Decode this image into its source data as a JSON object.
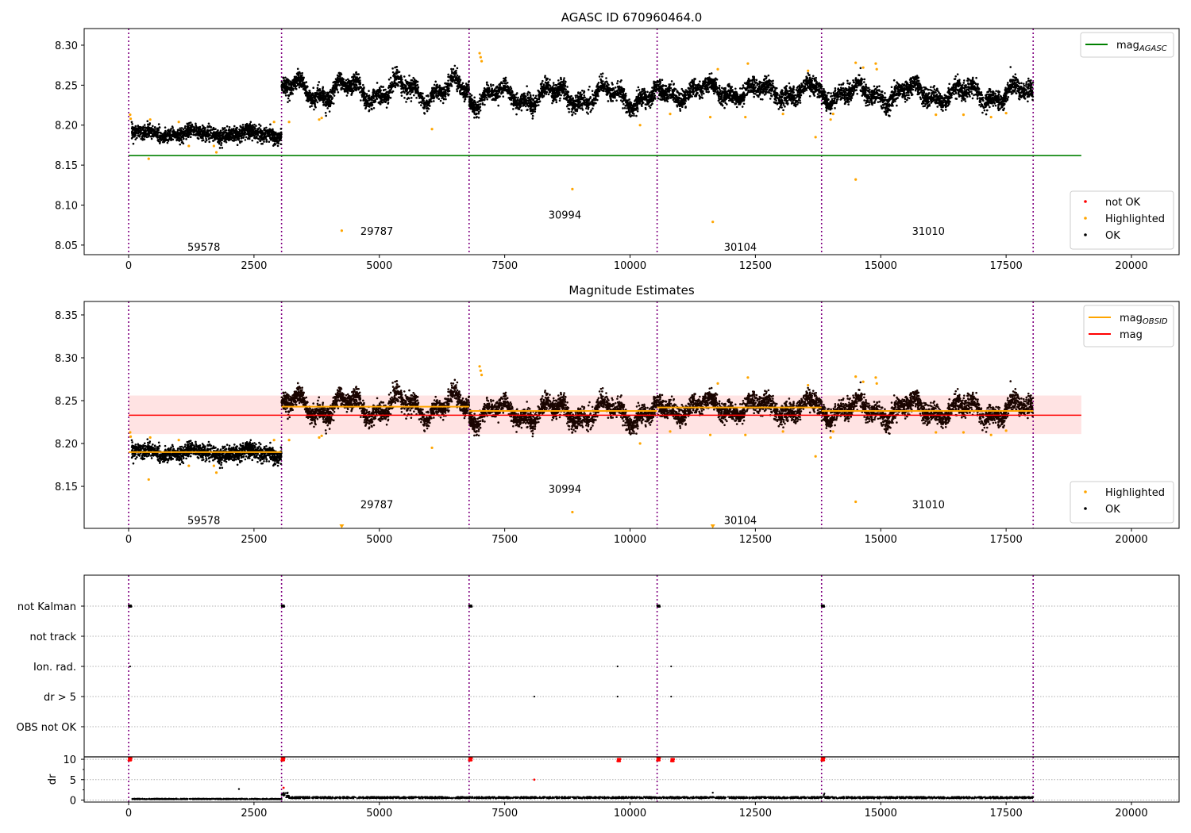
{
  "chart_data": [
    {
      "type": "scatter",
      "title": "AGASC ID 670960464.0",
      "xlim": [
        -887,
        20950
      ],
      "ylim": [
        8.038,
        8.3208
      ],
      "xticks": [
        0,
        2500,
        5000,
        7500,
        10000,
        12500,
        15000,
        17500,
        20000
      ],
      "yticks": [
        8.05,
        8.1,
        8.15,
        8.2,
        8.25,
        8.3
      ],
      "ytick_format": 2,
      "obsid_boundaries": [
        0,
        3050,
        6790,
        10540,
        13820,
        18040
      ],
      "obsid_labels": [
        {
          "text": "59578",
          "x": 1500,
          "y": 8.048
        },
        {
          "text": "29787",
          "x": 4950,
          "y": 8.068
        },
        {
          "text": "30994",
          "x": 8700,
          "y": 8.088
        },
        {
          "text": "30104",
          "x": 12200,
          "y": 8.048
        },
        {
          "text": "31010",
          "x": 15950,
          "y": 8.068
        }
      ],
      "hlines": [
        {
          "name": "mag_AGASC",
          "y": 8.162,
          "x": [
            0,
            19000
          ],
          "color": "#008000"
        }
      ],
      "legend_lines": {
        "placement": "upper right",
        "entries": [
          {
            "label": "mag",
            "sub": "AGASC",
            "color": "#008000"
          }
        ]
      },
      "legend_points": {
        "placement": "lower right",
        "entries": [
          {
            "label": "not OK",
            "color": "#ff0000"
          },
          {
            "label": "Highlighted",
            "color": "#ffa500"
          },
          {
            "label": "OK",
            "color": "#000000"
          }
        ]
      }
    },
    {
      "type": "scatter",
      "title": "Magnitude Estimates",
      "xlim": [
        -887,
        20950
      ],
      "ylim": [
        8.101,
        8.3657
      ],
      "xticks": [
        0,
        2500,
        5000,
        7500,
        10000,
        12500,
        15000,
        17500,
        20000
      ],
      "yticks": [
        8.15,
        8.2,
        8.25,
        8.3,
        8.35
      ],
      "ytick_format": 2,
      "obsid_boundaries": [
        0,
        3050,
        6790,
        10540,
        13820,
        18040
      ],
      "obsid_labels": [
        {
          "text": "59578",
          "x": 1500,
          "y": 8.1105
        },
        {
          "text": "29787",
          "x": 4950,
          "y": 8.129
        },
        {
          "text": "30994",
          "x": 8700,
          "y": 8.1475
        },
        {
          "text": "30104",
          "x": 12200,
          "y": 8.1105
        },
        {
          "text": "31010",
          "x": 15950,
          "y": 8.129
        }
      ],
      "mag": {
        "value": 8.233,
        "band": [
          8.211,
          8.256
        ],
        "x": [
          0,
          19000
        ],
        "color": "#ff0000"
      },
      "mag_obsid": [
        {
          "x": [
            0,
            3050
          ],
          "y": 8.19
        },
        {
          "x": [
            3050,
            6790
          ],
          "y": 8.243
        },
        {
          "x": [
            6790,
            10540
          ],
          "y": 8.238
        },
        {
          "x": [
            10540,
            13820
          ],
          "y": 8.242
        },
        {
          "x": [
            13820,
            18040
          ],
          "y": 8.238
        }
      ],
      "legend_lines": {
        "placement": "upper right",
        "entries": [
          {
            "label": "mag",
            "sub": "OBSID",
            "color": "#ffa500"
          },
          {
            "label": "mag",
            "sub": "",
            "color": "#ff0000"
          }
        ]
      },
      "legend_points": {
        "placement": "lower right",
        "entries": [
          {
            "label": "Highlighted",
            "color": "#ffa500"
          },
          {
            "label": "OK",
            "color": "#000000"
          }
        ]
      }
    },
    {
      "type": "scatter",
      "title": "",
      "categories": [
        "not Kalman",
        "not track",
        "Ion. rad.",
        "dr > 5",
        "OBS not OK"
      ],
      "flags": {
        "not Kalman": [
          0,
          3050,
          6790,
          10540,
          13820
        ],
        "not track": [],
        "Ion. rad.": [
          30,
          9750,
          10820
        ],
        "dr > 5": [
          8090,
          9750,
          10820
        ],
        "OBS not OK": []
      },
      "dr_axis": {
        "ylabel": "dr",
        "yticks": [
          0,
          5,
          10
        ],
        "ylim": [
          -0.5,
          10.6
        ],
        "threshold": 10.6
      },
      "dr_red_points": [
        [
          0,
          10
        ],
        [
          3050,
          10
        ],
        [
          6790,
          10
        ],
        [
          10540,
          10
        ],
        [
          13820,
          10
        ],
        [
          9750,
          9.8
        ],
        [
          10820,
          9.8
        ],
        [
          8090,
          5
        ],
        [
          3090,
          3
        ]
      ],
      "dr_black_level": [
        {
          "x": [
            60,
            3050
          ],
          "dr": 0.3
        },
        {
          "x": [
            3050,
            18040
          ],
          "dr": 0.7
        }
      ],
      "dr_outliers": [
        [
          2200,
          2.7
        ],
        [
          11650,
          1.8
        ]
      ],
      "xticks": [
        0,
        2500,
        5000,
        7500,
        10000,
        12500,
        15000,
        17500,
        20000
      ],
      "xlim": [
        -887,
        20950
      ]
    }
  ],
  "series": {
    "ok_segments": [
      {
        "x": [
          60,
          3050
        ],
        "mean": 8.189,
        "wave": 0.003,
        "noise": 0.0045
      },
      {
        "x": [
          3050,
          6790
        ],
        "mean": 8.243,
        "wave": 0.011,
        "noise": 0.0055
      },
      {
        "x": [
          6790,
          10540
        ],
        "mean": 8.236,
        "wave": 0.01,
        "noise": 0.0055
      },
      {
        "x": [
          10540,
          13820
        ],
        "mean": 8.242,
        "wave": 0.008,
        "noise": 0.0055
      },
      {
        "x": [
          13820,
          18040
        ],
        "mean": 8.239,
        "wave": 0.009,
        "noise": 0.0055
      }
    ],
    "highlighted": [
      [
        30,
        8.213
      ],
      [
        40,
        8.208
      ],
      [
        400,
        8.158
      ],
      [
        430,
        8.207
      ],
      [
        1000,
        8.204
      ],
      [
        1700,
        8.174
      ],
      [
        1750,
        8.166
      ],
      [
        1200,
        8.174
      ],
      [
        2900,
        8.204
      ],
      [
        3200,
        8.204
      ],
      [
        3800,
        8.207
      ],
      [
        3850,
        8.209
      ],
      [
        4250,
        8.068
      ],
      [
        6050,
        8.195
      ],
      [
        7000,
        8.29
      ],
      [
        7020,
        8.285
      ],
      [
        7040,
        8.28
      ],
      [
        8850,
        8.12
      ],
      [
        10200,
        8.2
      ],
      [
        10800,
        8.214
      ],
      [
        11650,
        8.079
      ],
      [
        11750,
        8.27
      ],
      [
        11600,
        8.21
      ],
      [
        12350,
        8.277
      ],
      [
        12300,
        8.21
      ],
      [
        13050,
        8.214
      ],
      [
        13550,
        8.268
      ],
      [
        13700,
        8.185
      ],
      [
        14000,
        8.207
      ],
      [
        14050,
        8.214
      ],
      [
        14500,
        8.132
      ],
      [
        14500,
        8.278
      ],
      [
        14650,
        8.272
      ],
      [
        14900,
        8.277
      ],
      [
        14920,
        8.27
      ],
      [
        16100,
        8.213
      ],
      [
        16650,
        8.213
      ],
      [
        17200,
        8.21
      ],
      [
        17500,
        8.215
      ]
    ]
  }
}
